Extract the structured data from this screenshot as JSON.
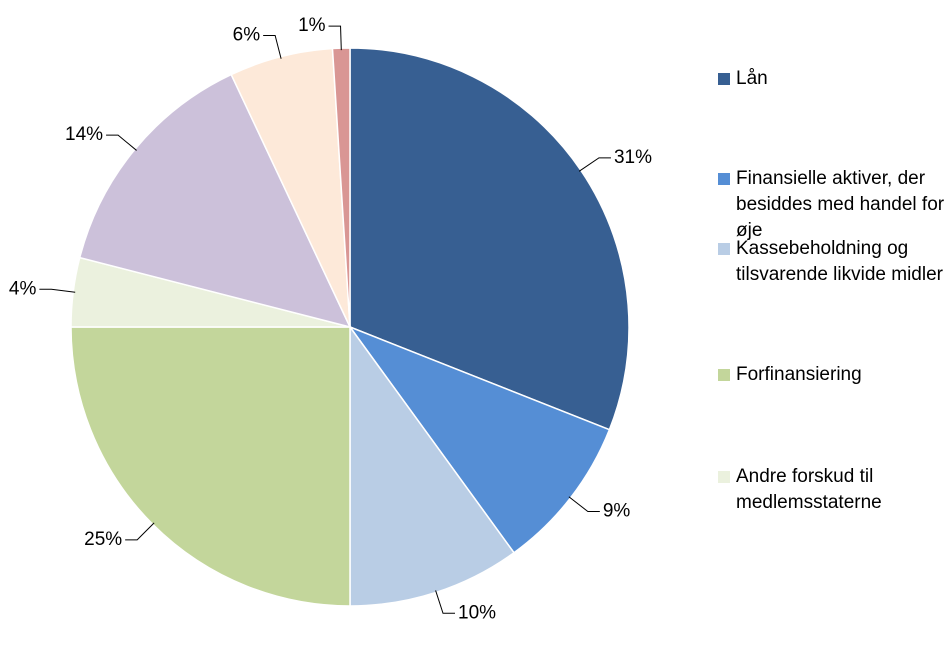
{
  "chart_data": {
    "type": "pie",
    "categories": [
      "Lån",
      "Finansielle aktiver, der besiddes med handel for øje",
      "Kassebeholdning og tilsvarende likvide midler",
      "Forfinansiering",
      "Andre forskud til medlemsstaterne",
      null,
      null,
      null
    ],
    "values": [
      31,
      9,
      10,
      25,
      4,
      14,
      6,
      1
    ],
    "value_labels": [
      "31%",
      "9%",
      "10%",
      "25%",
      "4%",
      "14%",
      "6%",
      "1%"
    ],
    "colors": [
      "#375f92",
      "#558ed5",
      "#b9cde5",
      "#c3d69b",
      "#ebf1de",
      "#ccc1da",
      "#fde9d9",
      "#d99694"
    ],
    "legend": "right"
  }
}
